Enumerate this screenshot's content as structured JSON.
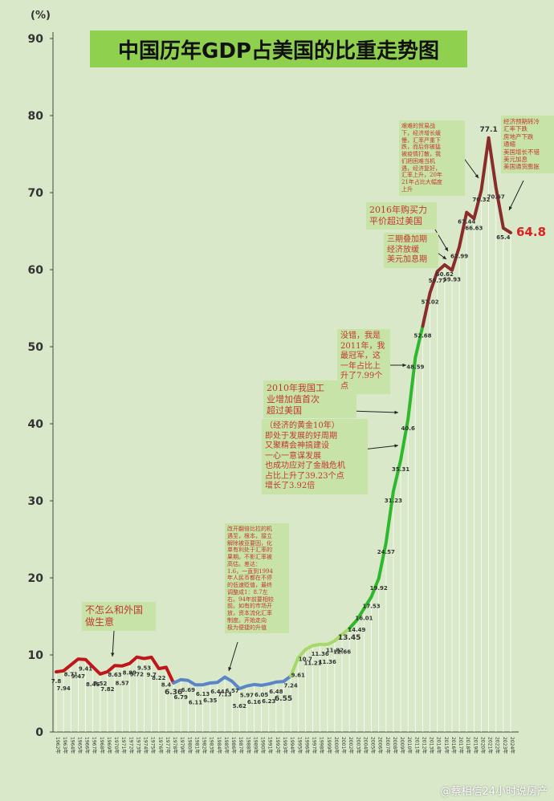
{
  "title": "中国历年GDP占美国的比重走势图",
  "unit": "(%)",
  "watermark": "@蔡相信24小时说房产",
  "last_label": "64.8",
  "colors": {
    "red": "#c0161a",
    "blue": "#5a86c8",
    "green": "#2db82d",
    "lightgreen": "#a6d96a",
    "brown": "#8b2c2c",
    "bg": "#d8e8c8"
  },
  "annotations": {
    "trade": "不怎么和外国\n做生意",
    "reform": "改开翻倍比拉的机\n遇至，根本，接立\n解除被亚要因，化\n单有利处于汇率的\n果期。不影汇率被\n高估。差达：\n1.6，一直到1994\n年人民币都在不停\n的低速贬值，最终\n调整成1：8.7左\n右。94年前要相较\n前。如有的市场开\n放，资本流化汇率\n制度。开始走向\n极为便捷的升值",
    "industry": "2010年我国工\n业增加值首次\n超过美国",
    "golden": "（经济的黄金10年）\n即处于发展的好周期\n又聚精会神搞建设\n一心一意谋发展\n也成功应对了金融危机\n占比上升了39.23个点\n增长了3.92倍",
    "peak2011": "没错，我是\n2011年，我\n最冠军，这\n一年占比上\n升了7.99个\n点",
    "ppp": "2016年购买力\n平价超过美国",
    "triple": "三期叠加期\n经济放缓\n美元加息期",
    "covid": "艰难的贸易战\n下，经济增长缓\n慢，汇率严重下\n跌，而后你被猛\n被疫情打散，我\n们把困难当机\n遇，经济复好，\n汇率上升，20年\n21年占比大幅度\n上升",
    "recent": "经济预期转冷\n汇率下跌\n房地产下跌\n通缩\n美国增长不错\n美元加息\n美国通货膨胀"
  },
  "chart_data": {
    "type": "line",
    "ylim": [
      0,
      90
    ],
    "yticks": [
      0,
      10,
      20,
      30,
      40,
      50,
      60,
      70,
      80,
      90
    ],
    "x": [
      "1962年",
      "1963年",
      "1964年",
      "1965年",
      "1966年",
      "1967年",
      "1968年",
      "1969年",
      "1970年",
      "1971年",
      "1972年",
      "1973年",
      "1974年",
      "1975年",
      "1976年",
      "1977年",
      "1978年",
      "1979年",
      "1980年",
      "1981年",
      "1982年",
      "1983年",
      "1984年",
      "1985年",
      "1986年",
      "1987年",
      "1988年",
      "1989年",
      "1990年",
      "1991年",
      "1992年",
      "1993年",
      "1994年",
      "1995年",
      "1996年",
      "1997年",
      "1998年",
      "1999年",
      "2000年",
      "2001年",
      "2002年",
      "2003年",
      "2004年",
      "2005年",
      "2006年",
      "2007年",
      "2008年",
      "2009年",
      "2010年",
      "2011年",
      "2012年",
      "2013年",
      "2014年",
      "2015年",
      "2016年",
      "2017年",
      "2018年",
      "2019年",
      "2020年",
      "2021年",
      "2022年",
      "2023年",
      "2024年"
    ],
    "values": [
      7.8,
      7.94,
      8.71,
      9.47,
      9.41,
      8.46,
      7.52,
      7.82,
      8.63,
      8.57,
      8.89,
      9.72,
      9.53,
      9.7,
      8.22,
      8.4,
      6.36,
      6.79,
      6.69,
      6.11,
      6.13,
      6.35,
      6.44,
      7.13,
      6.57,
      5.62,
      5.97,
      6.16,
      6.05,
      6.23,
      6.48,
      6.55,
      7.24,
      9.61,
      10.7,
      11.21,
      11.36,
      11.36,
      11.82,
      12.66,
      13.45,
      14.49,
      16.01,
      17.53,
      19.92,
      24.57,
      31.23,
      35.31,
      40.6,
      48.59,
      52.68,
      57.02,
      59.77,
      60.62,
      59.93,
      62.99,
      67.44,
      66.63,
      70.32,
      77.1,
      70.67,
      65.4,
      64.8
    ],
    "labels": [
      "7.8",
      "7.94",
      "8.71",
      "9.47",
      "9.41",
      "8.46",
      "7.52",
      "7.82",
      "8.63",
      "8.57",
      "8.89",
      "9.72",
      "9.53",
      "9.7",
      "8.22",
      "8.4",
      "6.36",
      "6.79",
      "6.69",
      "6.11",
      "6.13",
      "6.35",
      "6.44",
      "7.13",
      "6.57",
      "5.62",
      "5.97",
      "6.16",
      "6.05",
      "6.23",
      "6.48",
      "6.55",
      "7.24",
      "9.61",
      "10.7",
      "11.21",
      "11.36",
      "11.36",
      "11.82",
      "12.66",
      "13.45",
      "14.49",
      "16.01",
      "17.53",
      "19.92",
      "24.57",
      "31.23",
      "35.31",
      "40.6",
      "48.59",
      "52.68",
      "57.02",
      "59.77",
      "60.62",
      "59.93",
      "62.99",
      "67.44",
      "66.63",
      "70.32",
      "77.1",
      "70.67",
      "65.4",
      ""
    ],
    "segments": [
      {
        "from": 0,
        "to": 16,
        "color": "red"
      },
      {
        "from": 16,
        "to": 32,
        "color": "blue"
      },
      {
        "from": 32,
        "to": 40,
        "color": "lightgreen"
      },
      {
        "from": 40,
        "to": 50,
        "color": "green"
      },
      {
        "from": 50,
        "to": 62,
        "color": "brown"
      }
    ]
  }
}
